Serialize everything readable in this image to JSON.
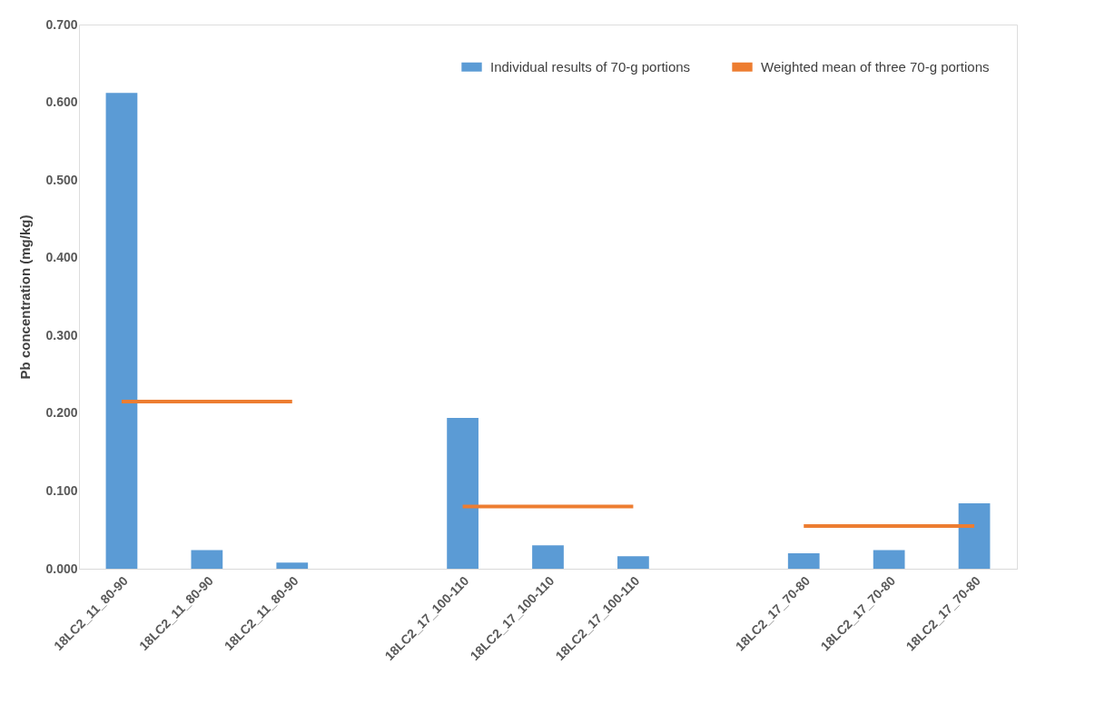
{
  "chart_data": {
    "type": "bar",
    "ylabel": "Pb concentration (mg/kg)",
    "categories": [
      "18LC2_11_80-90",
      "18LC2_11_80-90",
      "18LC2_11_80-90",
      null,
      "18LC2_17_100-110",
      "18LC2_17_100-110",
      "18LC2_17_100-110",
      null,
      "18LC2_17_70-80",
      "18LC2_17_70-80",
      "18LC2_17_70-80"
    ],
    "series": [
      {
        "name": "Individual results of 70-g portions",
        "color": "#5b9bd5",
        "values": [
          0.612,
          0.024,
          0.008,
          null,
          0.194,
          0.03,
          0.016,
          null,
          0.02,
          0.024,
          0.084
        ]
      },
      {
        "name": "Weighted mean of three 70-g portions",
        "color": "#ed7d31",
        "type": "line",
        "values": [
          0.215,
          0.215,
          0.215,
          null,
          0.08,
          0.08,
          0.08,
          null,
          0.055,
          0.055,
          0.055
        ]
      }
    ],
    "ylim": [
      0,
      0.7
    ],
    "yticks": [
      {
        "value": 0,
        "label": "0.000"
      },
      {
        "value": 0.1,
        "label": "0.100"
      },
      {
        "value": 0.2,
        "label": "0.200"
      },
      {
        "value": 0.3,
        "label": "0.300"
      },
      {
        "value": 0.4,
        "label": "0.400"
      },
      {
        "value": 0.5,
        "label": "0.500"
      },
      {
        "value": 0.6,
        "label": "0.600"
      },
      {
        "value": 0.7,
        "label": "0.700"
      }
    ],
    "grid": false,
    "legend": "top right",
    "line_style": "solid",
    "marker": "none"
  }
}
